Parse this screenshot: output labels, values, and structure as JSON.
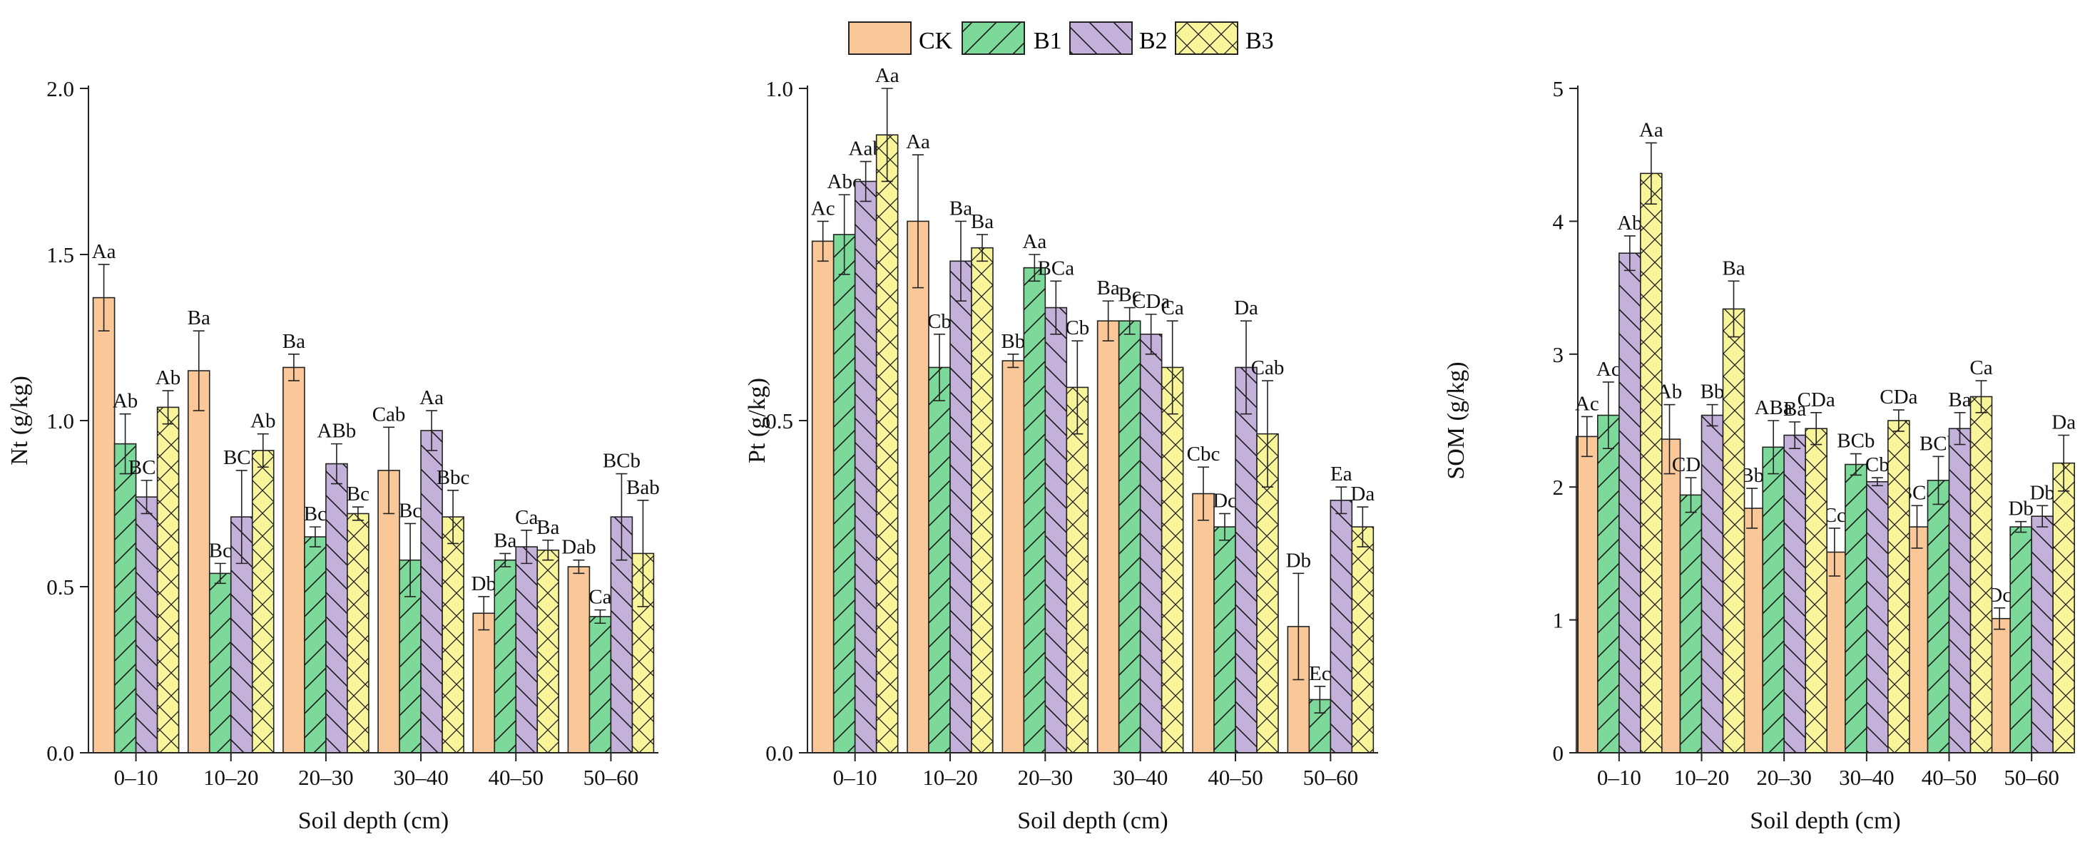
{
  "legend": {
    "items": [
      {
        "label": "CK",
        "color": "#FAC898",
        "pattern": "none"
      },
      {
        "label": "B1",
        "color": "#7DD99A",
        "pattern": "forward-diagonal"
      },
      {
        "label": "B2",
        "color": "#C3B1DA",
        "pattern": "back-diagonal"
      },
      {
        "label": "B3",
        "color": "#F8F49A",
        "pattern": "crosshatch"
      }
    ],
    "placement": "top-center"
  },
  "chart_data": [
    {
      "type": "bar",
      "title": "",
      "xlabel": "Soil depth (cm)",
      "ylabel": "Nt (g/kg)",
      "ylim": [
        0,
        2
      ],
      "yticks": [
        "0.0",
        "0.5",
        "1.0",
        "1.5",
        "2.0"
      ],
      "ytick_values": [
        0,
        0.5,
        1,
        1.5,
        2
      ],
      "grid": false,
      "categories": [
        "0–10",
        "10–20",
        "20–30",
        "30–40",
        "40–50",
        "50–60"
      ],
      "series": [
        {
          "name": "CK",
          "values": [
            1.37,
            1.15,
            1.16,
            0.85,
            0.42,
            0.56
          ],
          "errors": [
            0.1,
            0.12,
            0.04,
            0.13,
            0.05,
            0.02
          ],
          "labels": [
            "Aa",
            "Ba",
            "Ba",
            "Cab",
            "Db",
            "Dab"
          ]
        },
        {
          "name": "B1",
          "values": [
            0.93,
            0.54,
            0.65,
            0.58,
            0.58,
            0.41
          ],
          "errors": [
            0.09,
            0.03,
            0.03,
            0.11,
            0.02,
            0.02
          ],
          "labels": [
            "Ab",
            "Bc",
            "Bc",
            "Bc",
            "Ba",
            "Ca"
          ]
        },
        {
          "name": "B2",
          "values": [
            0.77,
            0.71,
            0.87,
            0.97,
            0.62,
            0.71
          ],
          "errors": [
            0.05,
            0.14,
            0.06,
            0.06,
            0.05,
            0.13
          ],
          "labels": [
            "BCc",
            "BCc",
            "ABb",
            "Aa",
            "Ca",
            "BCb"
          ]
        },
        {
          "name": "B3",
          "values": [
            1.04,
            0.91,
            0.72,
            0.71,
            0.61,
            0.6
          ],
          "errors": [
            0.05,
            0.05,
            0.02,
            0.08,
            0.03,
            0.16
          ],
          "labels": [
            "Ab",
            "Ab",
            "Bc",
            "Bbc",
            "Ba",
            "Bab"
          ]
        }
      ]
    },
    {
      "type": "bar",
      "title": "",
      "xlabel": "Soil depth (cm)",
      "ylabel": "Pt (g/kg)",
      "ylim": [
        0,
        1
      ],
      "yticks": [
        "0.0",
        "0.5",
        "1.0"
      ],
      "ytick_values": [
        0,
        0.5,
        1
      ],
      "grid": false,
      "categories": [
        "0–10",
        "10–20",
        "20–30",
        "30–40",
        "40–50",
        "50–60"
      ],
      "series": [
        {
          "name": "CK",
          "values": [
            0.77,
            0.8,
            0.59,
            0.65,
            0.39,
            0.19
          ],
          "errors": [
            0.03,
            0.1,
            0.01,
            0.03,
            0.04,
            0.08
          ],
          "labels": [
            "Ac",
            "Aa",
            "Bb",
            "Ba",
            "Cbc",
            "Db"
          ]
        },
        {
          "name": "B1",
          "values": [
            0.78,
            0.58,
            0.73,
            0.65,
            0.34,
            0.08
          ],
          "errors": [
            0.06,
            0.05,
            0.02,
            0.02,
            0.02,
            0.02
          ],
          "labels": [
            "Abc",
            "Cb",
            "Aa",
            "Bc",
            "Dc",
            "Ec"
          ]
        },
        {
          "name": "B2",
          "values": [
            0.86,
            0.74,
            0.67,
            0.63,
            0.58,
            0.38
          ],
          "errors": [
            0.03,
            0.06,
            0.04,
            0.03,
            0.07,
            0.02
          ],
          "labels": [
            "Aab",
            "Ba",
            "BCa",
            "CDa",
            "Da",
            "Ea"
          ]
        },
        {
          "name": "B3",
          "values": [
            0.93,
            0.76,
            0.55,
            0.58,
            0.48,
            0.34
          ],
          "errors": [
            0.07,
            0.02,
            0.07,
            0.07,
            0.08,
            0.03
          ],
          "labels": [
            "Aa",
            "Ba",
            "Cb",
            "Ca",
            "Cab",
            "Da"
          ]
        }
      ]
    },
    {
      "type": "bar",
      "title": "",
      "xlabel": "Soil depth (cm)",
      "ylabel": "SOM (g/kg)",
      "ylim": [
        0,
        5
      ],
      "yticks": [
        "0",
        "1",
        "2",
        "3",
        "4",
        "5"
      ],
      "ytick_values": [
        0,
        1,
        2,
        3,
        4,
        5
      ],
      "grid": false,
      "categories": [
        "0–10",
        "10–20",
        "20–30",
        "30–40",
        "40–50",
        "50–60"
      ],
      "series": [
        {
          "name": "CK",
          "values": [
            2.38,
            2.36,
            1.84,
            1.51,
            1.7,
            1.01
          ],
          "errors": [
            0.15,
            0.26,
            0.15,
            0.18,
            0.16,
            0.08
          ],
          "labels": [
            "Ac",
            "Ab",
            "Bb",
            "Cc",
            "BCc",
            "Dc"
          ]
        },
        {
          "name": "B1",
          "values": [
            2.54,
            1.94,
            2.3,
            2.17,
            2.05,
            1.7
          ],
          "errors": [
            0.25,
            0.13,
            0.2,
            0.08,
            0.18,
            0.04
          ],
          "labels": [
            "Ac",
            "CDc",
            "ABa",
            "BCb",
            "BCb",
            "Db"
          ]
        },
        {
          "name": "B2",
          "values": [
            3.76,
            2.54,
            2.39,
            2.04,
            2.44,
            1.78
          ],
          "errors": [
            0.13,
            0.08,
            0.1,
            0.03,
            0.12,
            0.08
          ],
          "labels": [
            "Ab",
            "Bb",
            "Ba",
            "Cb",
            "Ba",
            "Db"
          ]
        },
        {
          "name": "B3",
          "values": [
            4.36,
            3.34,
            2.44,
            2.5,
            2.68,
            2.18
          ],
          "errors": [
            0.23,
            0.21,
            0.12,
            0.08,
            0.12,
            0.21
          ],
          "labels": [
            "Aa",
            "Ba",
            "CDa",
            "CDa",
            "Ca",
            "Da"
          ]
        }
      ]
    }
  ]
}
